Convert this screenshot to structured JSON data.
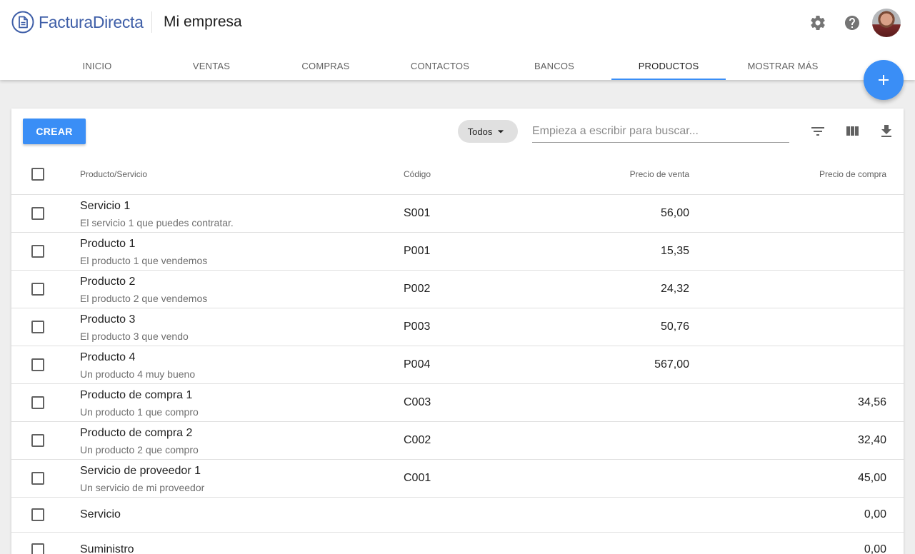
{
  "app": {
    "brand": "FacturaDirecta",
    "company": "Mi empresa"
  },
  "colors": {
    "accent": "#3a8ef6",
    "brand": "#3f5fa8",
    "background": "#eeeeee"
  },
  "header_icons": [
    "gear-icon",
    "help-icon",
    "avatar"
  ],
  "tabs": [
    {
      "label": "INICIO",
      "active": false
    },
    {
      "label": "VENTAS",
      "active": false
    },
    {
      "label": "COMPRAS",
      "active": false
    },
    {
      "label": "CONTACTOS",
      "active": false
    },
    {
      "label": "BANCOS",
      "active": false
    },
    {
      "label": "PRODUCTOS",
      "active": true
    },
    {
      "label": "MOSTRAR MÁS",
      "active": false
    }
  ],
  "toolbar": {
    "create_label": "CREAR",
    "filter_chip": "Todos",
    "search_placeholder": "Empieza a escribir para buscar...",
    "search_value": ""
  },
  "table": {
    "headers": {
      "name": "Producto/Servicio",
      "code": "Código",
      "sale_price": "Precio de venta",
      "purchase_price": "Precio de compra"
    },
    "rows": [
      {
        "name": "Servicio 1",
        "desc": "El servicio 1 que puedes contratar.",
        "code": "S001",
        "sale": "56,00",
        "buy": ""
      },
      {
        "name": "Producto 1",
        "desc": "El producto 1 que vendemos",
        "code": "P001",
        "sale": "15,35",
        "buy": ""
      },
      {
        "name": "Producto 2",
        "desc": "El producto 2 que vendemos",
        "code": "P002",
        "sale": "24,32",
        "buy": ""
      },
      {
        "name": "Producto 3",
        "desc": "El producto 3 que vendo",
        "code": "P003",
        "sale": "50,76",
        "buy": ""
      },
      {
        "name": "Producto 4",
        "desc": "Un producto 4 muy bueno",
        "code": "P004",
        "sale": "567,00",
        "buy": ""
      },
      {
        "name": "Producto de compra 1",
        "desc": "Un producto 1 que compro",
        "code": "C003",
        "sale": "",
        "buy": "34,56"
      },
      {
        "name": "Producto de compra 2",
        "desc": "Un producto 2 que compro",
        "code": "C002",
        "sale": "",
        "buy": "32,40"
      },
      {
        "name": "Servicio de proveedor 1",
        "desc": "Un servicio de mi proveedor",
        "code": "C001",
        "sale": "",
        "buy": "45,00"
      },
      {
        "name": "Servicio",
        "desc": "",
        "code": "",
        "sale": "",
        "buy": "0,00"
      },
      {
        "name": "Suministro",
        "desc": "",
        "code": "",
        "sale": "",
        "buy": "0,00"
      }
    ]
  }
}
